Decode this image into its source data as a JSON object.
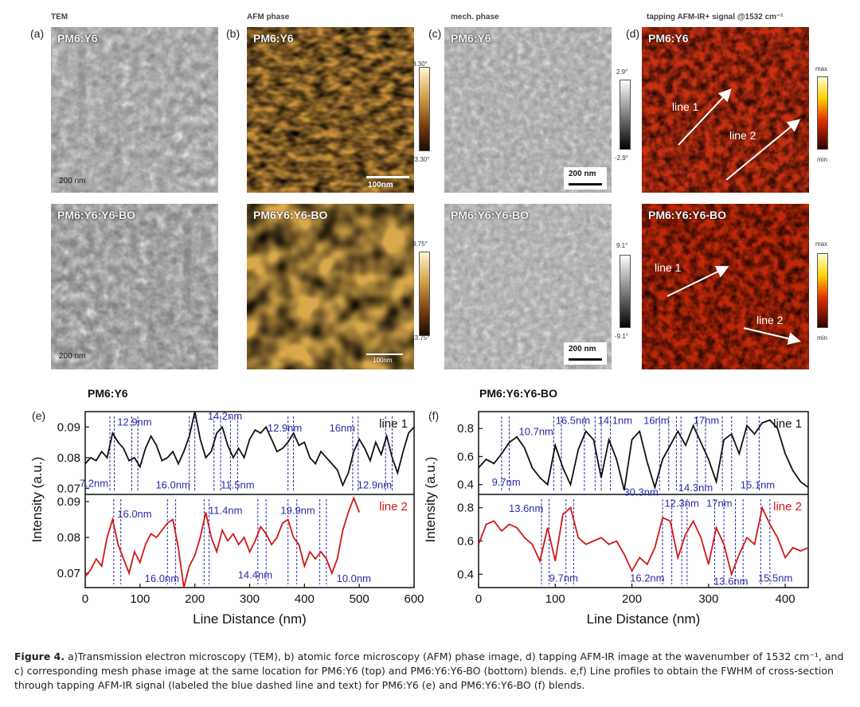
{
  "columns": {
    "tem": "TEM",
    "afm": "AFM phase",
    "mech": "mech. phase",
    "ir": "tapping AFM-IR+ signal @1532 cm⁻¹"
  },
  "panels": {
    "a": "(a)",
    "b": "(b)",
    "c": "(c)",
    "d": "(d)",
    "e": "(e)",
    "f": "(f)"
  },
  "samples": {
    "top": "PM6:Y6",
    "bottom": "PM6:Y6:Y6-BO",
    "bottom_afm": "PM6Y6:Y6-BO"
  },
  "scalebars": {
    "tem": "200 nm",
    "afm_top": "100nm",
    "afm_bottom": "100nm",
    "mech": "200 nm"
  },
  "colorbars": {
    "afm_top": {
      "max": "3.30°",
      "min": "-3.30°"
    },
    "afm_bottom": {
      "max": "3.75°",
      "min": "-3.75°"
    },
    "mech_top": {
      "max": "2.9°",
      "min": "-2.9°"
    },
    "mech_bottom": {
      "max": "9.1°",
      "min": "-9.1°"
    },
    "ir_top": {
      "max": "max",
      "min": "min"
    },
    "ir_bottom": {
      "max": "max",
      "min": "min"
    }
  },
  "ir_lines": {
    "line1": "line 1",
    "line2": "line 2"
  },
  "colors": {
    "line1": "#111111",
    "line2": "#d01818",
    "fwhm": "#2a2aa8"
  },
  "chart_data": [
    {
      "type": "line",
      "title": "PM6:Y6",
      "xlabel": "Line Distance (nm)",
      "ylabel": "Intensity (a.u.)",
      "xlim": [
        0,
        600
      ],
      "xticks": [
        "0",
        "100",
        "200",
        "300",
        "400",
        "500",
        "600"
      ],
      "upper": {
        "ylim": [
          0.068,
          0.095
        ],
        "yticks": [
          0.07,
          0.08,
          0.09
        ],
        "ytick_labels": [
          "0.07",
          "0.08",
          "0.09"
        ],
        "series": [
          {
            "name": "line 1",
            "x": [
              0,
              10,
              20,
              30,
              40,
              50,
              60,
              70,
              80,
              90,
              100,
              110,
              120,
              130,
              140,
              150,
              160,
              170,
              180,
              190,
              200,
              210,
              220,
              230,
              240,
              250,
              260,
              270,
              280,
              290,
              300,
              310,
              320,
              330,
              340,
              350,
              360,
              370,
              380,
              390,
              400,
              410,
              420,
              430,
              440,
              450,
              460,
              470,
              480,
              490,
              500,
              510,
              520,
              530,
              540,
              550,
              560,
              570,
              580,
              590,
              600
            ],
            "y": [
              0.078,
              0.08,
              0.079,
              0.082,
              0.08,
              0.088,
              0.085,
              0.083,
              0.079,
              0.08,
              0.077,
              0.083,
              0.087,
              0.084,
              0.079,
              0.08,
              0.082,
              0.078,
              0.082,
              0.087,
              0.095,
              0.086,
              0.08,
              0.082,
              0.088,
              0.09,
              0.084,
              0.08,
              0.083,
              0.08,
              0.086,
              0.089,
              0.088,
              0.09,
              0.086,
              0.082,
              0.083,
              0.085,
              0.088,
              0.084,
              0.085,
              0.08,
              0.078,
              0.082,
              0.08,
              0.078,
              0.076,
              0.071,
              0.075,
              0.082,
              0.086,
              0.083,
              0.079,
              0.085,
              0.081,
              0.087,
              0.08,
              0.075,
              0.082,
              0.088,
              0.09
            ]
          }
        ],
        "fwhm_lines": [
          45,
          53,
          85,
          96,
          190,
          200,
          235,
          247,
          265,
          278,
          370,
          380,
          488,
          498,
          548,
          560
        ],
        "annotations": [
          {
            "text": "12.9nm",
            "x": 90,
            "y": 0.0915
          },
          {
            "text": "14.2nm",
            "x": 255,
            "y": 0.0935
          },
          {
            "text": "12.9nm",
            "x": 364,
            "y": 0.0895
          },
          {
            "text": "16nm",
            "x": 469,
            "y": 0.0895
          },
          {
            "text": "7.2nm",
            "x": 16,
            "y": 0.0715
          },
          {
            "text": "16.0nm",
            "x": 160,
            "y": 0.071
          },
          {
            "text": "11.5nm",
            "x": 278,
            "y": 0.071
          },
          {
            "text": "12.9nm",
            "x": 528,
            "y": 0.071
          }
        ],
        "legend": "line 1"
      },
      "lower": {
        "ylim": [
          0.066,
          0.092
        ],
        "yticks": [
          0.07,
          0.08,
          0.09
        ],
        "ytick_labels": [
          "0.07",
          "0.08",
          "0.09"
        ],
        "series": [
          {
            "name": "line 2",
            "x": [
              0,
              10,
              20,
              30,
              40,
              50,
              60,
              70,
              80,
              90,
              100,
              110,
              120,
              130,
              140,
              150,
              160,
              170,
              180,
              190,
              200,
              210,
              220,
              230,
              240,
              250,
              260,
              270,
              280,
              290,
              300,
              310,
              320,
              330,
              340,
              350,
              360,
              370,
              380,
              390,
              400,
              410,
              420,
              430,
              440,
              450,
              460,
              470,
              480,
              490,
              500
            ],
            "y": [
              0.069,
              0.071,
              0.074,
              0.072,
              0.08,
              0.085,
              0.078,
              0.074,
              0.07,
              0.076,
              0.073,
              0.078,
              0.081,
              0.08,
              0.082,
              0.084,
              0.085,
              0.077,
              0.066,
              0.072,
              0.075,
              0.08,
              0.087,
              0.08,
              0.076,
              0.082,
              0.079,
              0.081,
              0.078,
              0.08,
              0.076,
              0.079,
              0.083,
              0.081,
              0.078,
              0.08,
              0.084,
              0.085,
              0.08,
              0.078,
              0.072,
              0.076,
              0.074,
              0.076,
              0.074,
              0.07,
              0.074,
              0.082,
              0.087,
              0.091,
              0.087
            ]
          }
        ],
        "fwhm_lines": [
          52,
          65,
          150,
          165,
          217,
          226,
          315,
          330,
          370,
          386,
          428,
          440
        ],
        "annotations": [
          {
            "text": "16.0nm",
            "x": 90,
            "y": 0.0865
          },
          {
            "text": "11.4nm",
            "x": 256,
            "y": 0.0875
          },
          {
            "text": "19.9nm",
            "x": 388,
            "y": 0.0875
          },
          {
            "text": "16.0nm",
            "x": 140,
            "y": 0.0685
          },
          {
            "text": "14.4nm",
            "x": 310,
            "y": 0.0695
          },
          {
            "text": "10.0nm",
            "x": 490,
            "y": 0.0685
          }
        ],
        "legend": "line 2"
      }
    },
    {
      "type": "line",
      "title": "PM6:Y6:Y6-BO",
      "xlabel": "Line Distance (nm)",
      "ylabel": "Intensity (a.u.)",
      "xlim": [
        0,
        430
      ],
      "xticks": [
        "0",
        "100",
        "200",
        "300",
        "400"
      ],
      "upper": {
        "ylim": [
          0.33,
          0.92
        ],
        "yticks": [
          0.4,
          0.6,
          0.8
        ],
        "ytick_labels": [
          "0.4",
          "0.6",
          "0.8"
        ],
        "series": [
          {
            "name": "line 1",
            "x": [
              0,
              10,
              20,
              30,
              40,
              50,
              60,
              70,
              80,
              90,
              100,
              110,
              120,
              130,
              140,
              150,
              160,
              170,
              180,
              190,
              200,
              210,
              220,
              230,
              240,
              250,
              260,
              270,
              280,
              290,
              300,
              310,
              320,
              330,
              340,
              350,
              360,
              370,
              380,
              390,
              400,
              410,
              420,
              430
            ],
            "y": [
              0.52,
              0.58,
              0.55,
              0.62,
              0.7,
              0.74,
              0.66,
              0.52,
              0.45,
              0.4,
              0.68,
              0.52,
              0.4,
              0.65,
              0.78,
              0.72,
              0.45,
              0.72,
              0.58,
              0.36,
              0.72,
              0.78,
              0.56,
              0.38,
              0.58,
              0.68,
              0.78,
              0.68,
              0.82,
              0.7,
              0.58,
              0.42,
              0.72,
              0.76,
              0.62,
              0.82,
              0.76,
              0.84,
              0.86,
              0.8,
              0.62,
              0.5,
              0.42,
              0.38
            ]
          }
        ],
        "fwhm_lines": [
          30,
          40,
          98,
          108,
          138,
          152,
          160,
          172,
          236,
          248,
          258,
          264,
          285,
          296,
          318,
          330,
          350,
          366
        ],
        "annotations": [
          {
            "text": "10.7nm",
            "x": 75,
            "y": 0.775
          },
          {
            "text": "16.5nm",
            "x": 123,
            "y": 0.855
          },
          {
            "text": "14.1nm",
            "x": 178,
            "y": 0.855
          },
          {
            "text": "16nm",
            "x": 232,
            "y": 0.855
          },
          {
            "text": "17nm",
            "x": 297,
            "y": 0.855
          },
          {
            "text": "9.7nm",
            "x": 36,
            "y": 0.415
          },
          {
            "text": "30.3nm",
            "x": 212,
            "y": 0.345
          },
          {
            "text": "14.3nm",
            "x": 283,
            "y": 0.375
          },
          {
            "text": "15.1nm",
            "x": 364,
            "y": 0.395
          }
        ],
        "legend": "line 1"
      },
      "lower": {
        "ylim": [
          0.32,
          0.88
        ],
        "yticks": [
          0.4,
          0.6,
          0.8
        ],
        "ytick_labels": [
          "0.4",
          "0.6",
          "0.8"
        ],
        "series": [
          {
            "name": "line 2",
            "x": [
              0,
              10,
              20,
              30,
              40,
              50,
              60,
              70,
              80,
              90,
              100,
              110,
              120,
              130,
              140,
              150,
              160,
              170,
              180,
              190,
              200,
              210,
              220,
              230,
              240,
              250,
              260,
              270,
              280,
              290,
              300,
              310,
              320,
              330,
              340,
              350,
              360,
              370,
              380,
              390,
              400,
              410,
              420,
              430
            ],
            "y": [
              0.58,
              0.7,
              0.72,
              0.66,
              0.7,
              0.68,
              0.62,
              0.58,
              0.48,
              0.68,
              0.48,
              0.76,
              0.8,
              0.62,
              0.58,
              0.6,
              0.62,
              0.58,
              0.6,
              0.52,
              0.42,
              0.5,
              0.46,
              0.56,
              0.74,
              0.72,
              0.5,
              0.64,
              0.72,
              0.62,
              0.46,
              0.68,
              0.58,
              0.4,
              0.52,
              0.62,
              0.58,
              0.8,
              0.7,
              0.62,
              0.5,
              0.56,
              0.54,
              0.56
            ]
          }
        ],
        "fwhm_lines": [
          82,
          92,
          114,
          124,
          240,
          252,
          265,
          272,
          308,
          320,
          335,
          345,
          368,
          380
        ],
        "annotations": [
          {
            "text": "13.6nm",
            "x": 62,
            "y": 0.795
          },
          {
            "text": "12.3nm",
            "x": 265,
            "y": 0.825
          },
          {
            "text": "17nm",
            "x": 314,
            "y": 0.825
          },
          {
            "text": "9.7nm",
            "x": 111,
            "y": 0.375
          },
          {
            "text": "16.2nm",
            "x": 220,
            "y": 0.375
          },
          {
            "text": "13.6nm",
            "x": 329,
            "y": 0.355
          },
          {
            "text": "15.5nm",
            "x": 387,
            "y": 0.375
          }
        ],
        "legend": "line 2"
      }
    }
  ],
  "caption": {
    "label": "Figure 4.",
    "text": " a)Transmission electron microscopy (TEM), b) atomic force microscopy (AFM) phase image, d) tapping AFM-IR image at the wavenumber of 1532 cm⁻¹, and c) corresponding mesh phase image at the same location for PM6:Y6 (top) and PM6:Y6:Y6-BO (bottom) blends. e,f) Line profiles to obtain the FWHM of cross-section through tapping AFM-IR signal (labeled the blue dashed line and text) for PM6:Y6 (e) and PM6:Y6:Y6-BO (f) blends."
  }
}
